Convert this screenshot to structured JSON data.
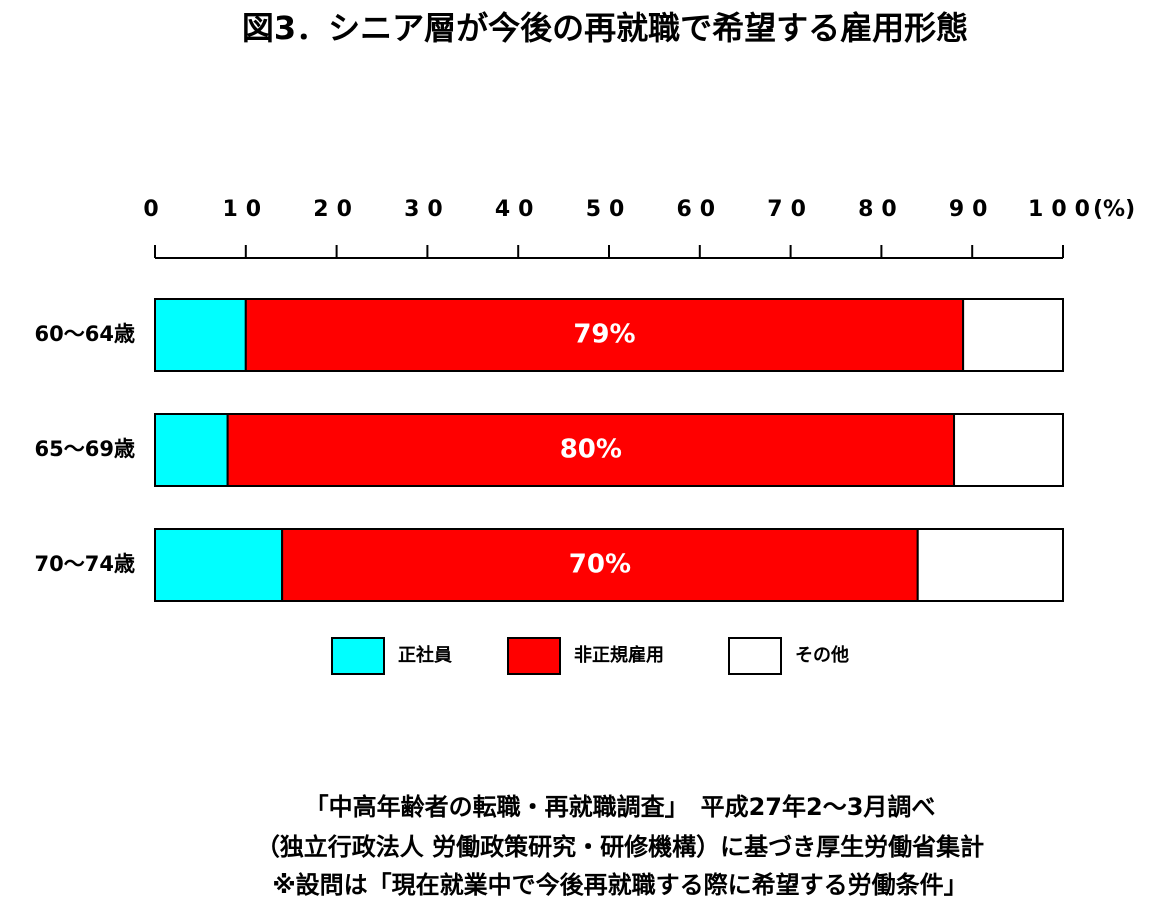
{
  "chart_data": {
    "type": "stacked_bar_horizontal",
    "title": "図3．シニア層が今後の再就職で希望する雇用形態",
    "categories": [
      "60～64歳",
      "65～69歳",
      "70～74歳"
    ],
    "series": [
      {
        "name": "正社員",
        "color": "#00ffff",
        "values": [
          10,
          8,
          14
        ]
      },
      {
        "name": "非正規雇用",
        "color": "#ff0000",
        "values": [
          79,
          80,
          70
        ],
        "value_labels": [
          "79%",
          "80%",
          "70%"
        ]
      },
      {
        "name": "その他",
        "color": "#ffffff",
        "values": [
          11,
          12,
          16
        ]
      }
    ],
    "xlim": [
      0,
      100
    ],
    "xticks": [
      0,
      10,
      20,
      30,
      40,
      50,
      60,
      70,
      80,
      90,
      100
    ],
    "xlabel": "(%)",
    "notes": [
      "「中高年齢者の転職・再就職調査」　平成27年2～3月調べ",
      "（独立行政法人 労働政策研究・研修機構）に基づき厚生労働省集計",
      "※設問は「現在就業中で今後再就職する際に希望する労働条件」"
    ]
  }
}
